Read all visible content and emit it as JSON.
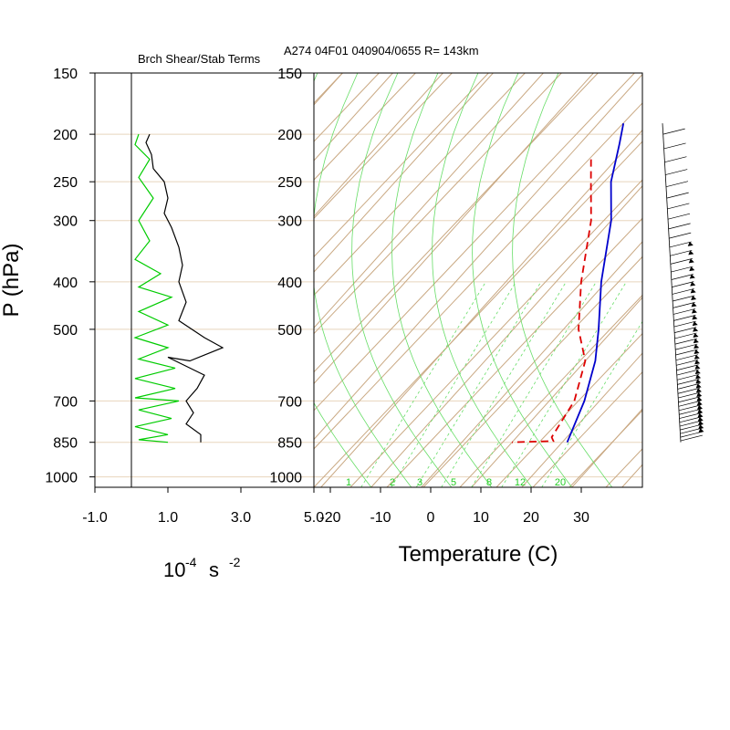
{
  "header": {
    "left_title": "Brch Shear/Stab Terms",
    "right_title": "A274 04F01 040904/0655 R= 143km"
  },
  "left_panel": {
    "ylabel": "P (hPa)",
    "xlabel_base": "10",
    "xlabel_exp": "-4",
    "xlabel_unit": "s",
    "xlabel_unit_exp": "-2",
    "xticks": [
      "-1.0",
      "1.0",
      "3.0",
      "5.0"
    ]
  },
  "right_panel": {
    "xlabel": "Temperature (C)",
    "xticks": [
      "-20",
      "-10",
      "0",
      "10",
      "20",
      "30"
    ],
    "mixing_ratio_labels": [
      "1",
      "2",
      "3",
      "5",
      "8",
      "12",
      "20"
    ]
  },
  "pressure_levels": [
    "150",
    "200",
    "250",
    "300",
    "400",
    "500",
    "700",
    "850",
    "1000"
  ],
  "colors": {
    "temperature": "#0000cc",
    "dewpoint": "#dd0000",
    "stability": "#00cc00",
    "shear": "#000000",
    "background_lines": "#c9a882",
    "moist_adiabat": "#66dd66"
  },
  "chart_data": [
    {
      "type": "line",
      "title": "Brch Shear/Stab Terms",
      "ylabel": "P (hPa)",
      "xlabel": "10^-4 s^-2",
      "xlim": [
        -1.0,
        5.0
      ],
      "ylim": [
        1000,
        150
      ],
      "y_scale": "log",
      "series": [
        {
          "color": "#000000",
          "points": [
            [
              0.5,
              200
            ],
            [
              0.4,
              208
            ],
            [
              0.55,
              220
            ],
            [
              0.6,
              235
            ],
            [
              0.9,
              250
            ],
            [
              1.0,
              270
            ],
            [
              0.9,
              290
            ],
            [
              1.1,
              310
            ],
            [
              1.3,
              340
            ],
            [
              1.4,
              370
            ],
            [
              1.3,
              400
            ],
            [
              1.5,
              440
            ],
            [
              1.3,
              480
            ],
            [
              2.0,
              520
            ],
            [
              2.5,
              545
            ],
            [
              1.6,
              580
            ],
            [
              1.0,
              570
            ],
            [
              2.0,
              620
            ],
            [
              1.8,
              660
            ],
            [
              1.5,
              700
            ],
            [
              1.7,
              740
            ],
            [
              1.5,
              780
            ],
            [
              1.9,
              820
            ],
            [
              1.9,
              850
            ]
          ]
        },
        {
          "color": "#00cc00",
          "points": [
            [
              0.2,
              200
            ],
            [
              0.1,
              210
            ],
            [
              0.5,
              225
            ],
            [
              0.2,
              245
            ],
            [
              0.6,
              270
            ],
            [
              0.2,
              300
            ],
            [
              0.5,
              330
            ],
            [
              0.1,
              360
            ],
            [
              0.8,
              385
            ],
            [
              0.2,
              410
            ],
            [
              1.1,
              430
            ],
            [
              0.2,
              460
            ],
            [
              1.0,
              490
            ],
            [
              0.1,
              520
            ],
            [
              1.0,
              545
            ],
            [
              0.2,
              575
            ],
            [
              1.2,
              600
            ],
            [
              0.1,
              630
            ],
            [
              1.2,
              660
            ],
            [
              0.1,
              690
            ],
            [
              1.3,
              700
            ],
            [
              0.2,
              730
            ],
            [
              1.1,
              760
            ],
            [
              0.1,
              790
            ],
            [
              1.0,
              820
            ],
            [
              0.2,
              840
            ],
            [
              1.0,
              850
            ]
          ]
        }
      ]
    },
    {
      "type": "line",
      "title": "A274 04F01 040904/0655 R= 143km",
      "xlabel": "Temperature (C)",
      "ylabel": "P (hPa)",
      "xlim": [
        -23,
        40
      ],
      "ylim": [
        1000,
        150
      ],
      "y_scale": "log",
      "skew": "skew-T log-p",
      "series": [
        {
          "color": "#0000cc",
          "points": [
            [
              -25,
              190
            ],
            [
              -22,
              210
            ],
            [
              -17,
              250
            ],
            [
              -10,
              300
            ],
            [
              -1,
              400
            ],
            [
              7,
              500
            ],
            [
              12,
              580
            ],
            [
              17,
              700
            ],
            [
              21,
              850
            ]
          ]
        },
        {
          "color": "#dd0000",
          "points": [
            [
              -25,
              225
            ],
            [
              -21,
              250
            ],
            [
              -14,
              300
            ],
            [
              -5,
              400
            ],
            [
              3,
              500
            ],
            [
              10,
              580
            ],
            [
              15,
              700
            ],
            [
              17,
              830
            ],
            [
              18,
              845
            ],
            [
              10,
              850
            ]
          ]
        }
      ]
    }
  ]
}
